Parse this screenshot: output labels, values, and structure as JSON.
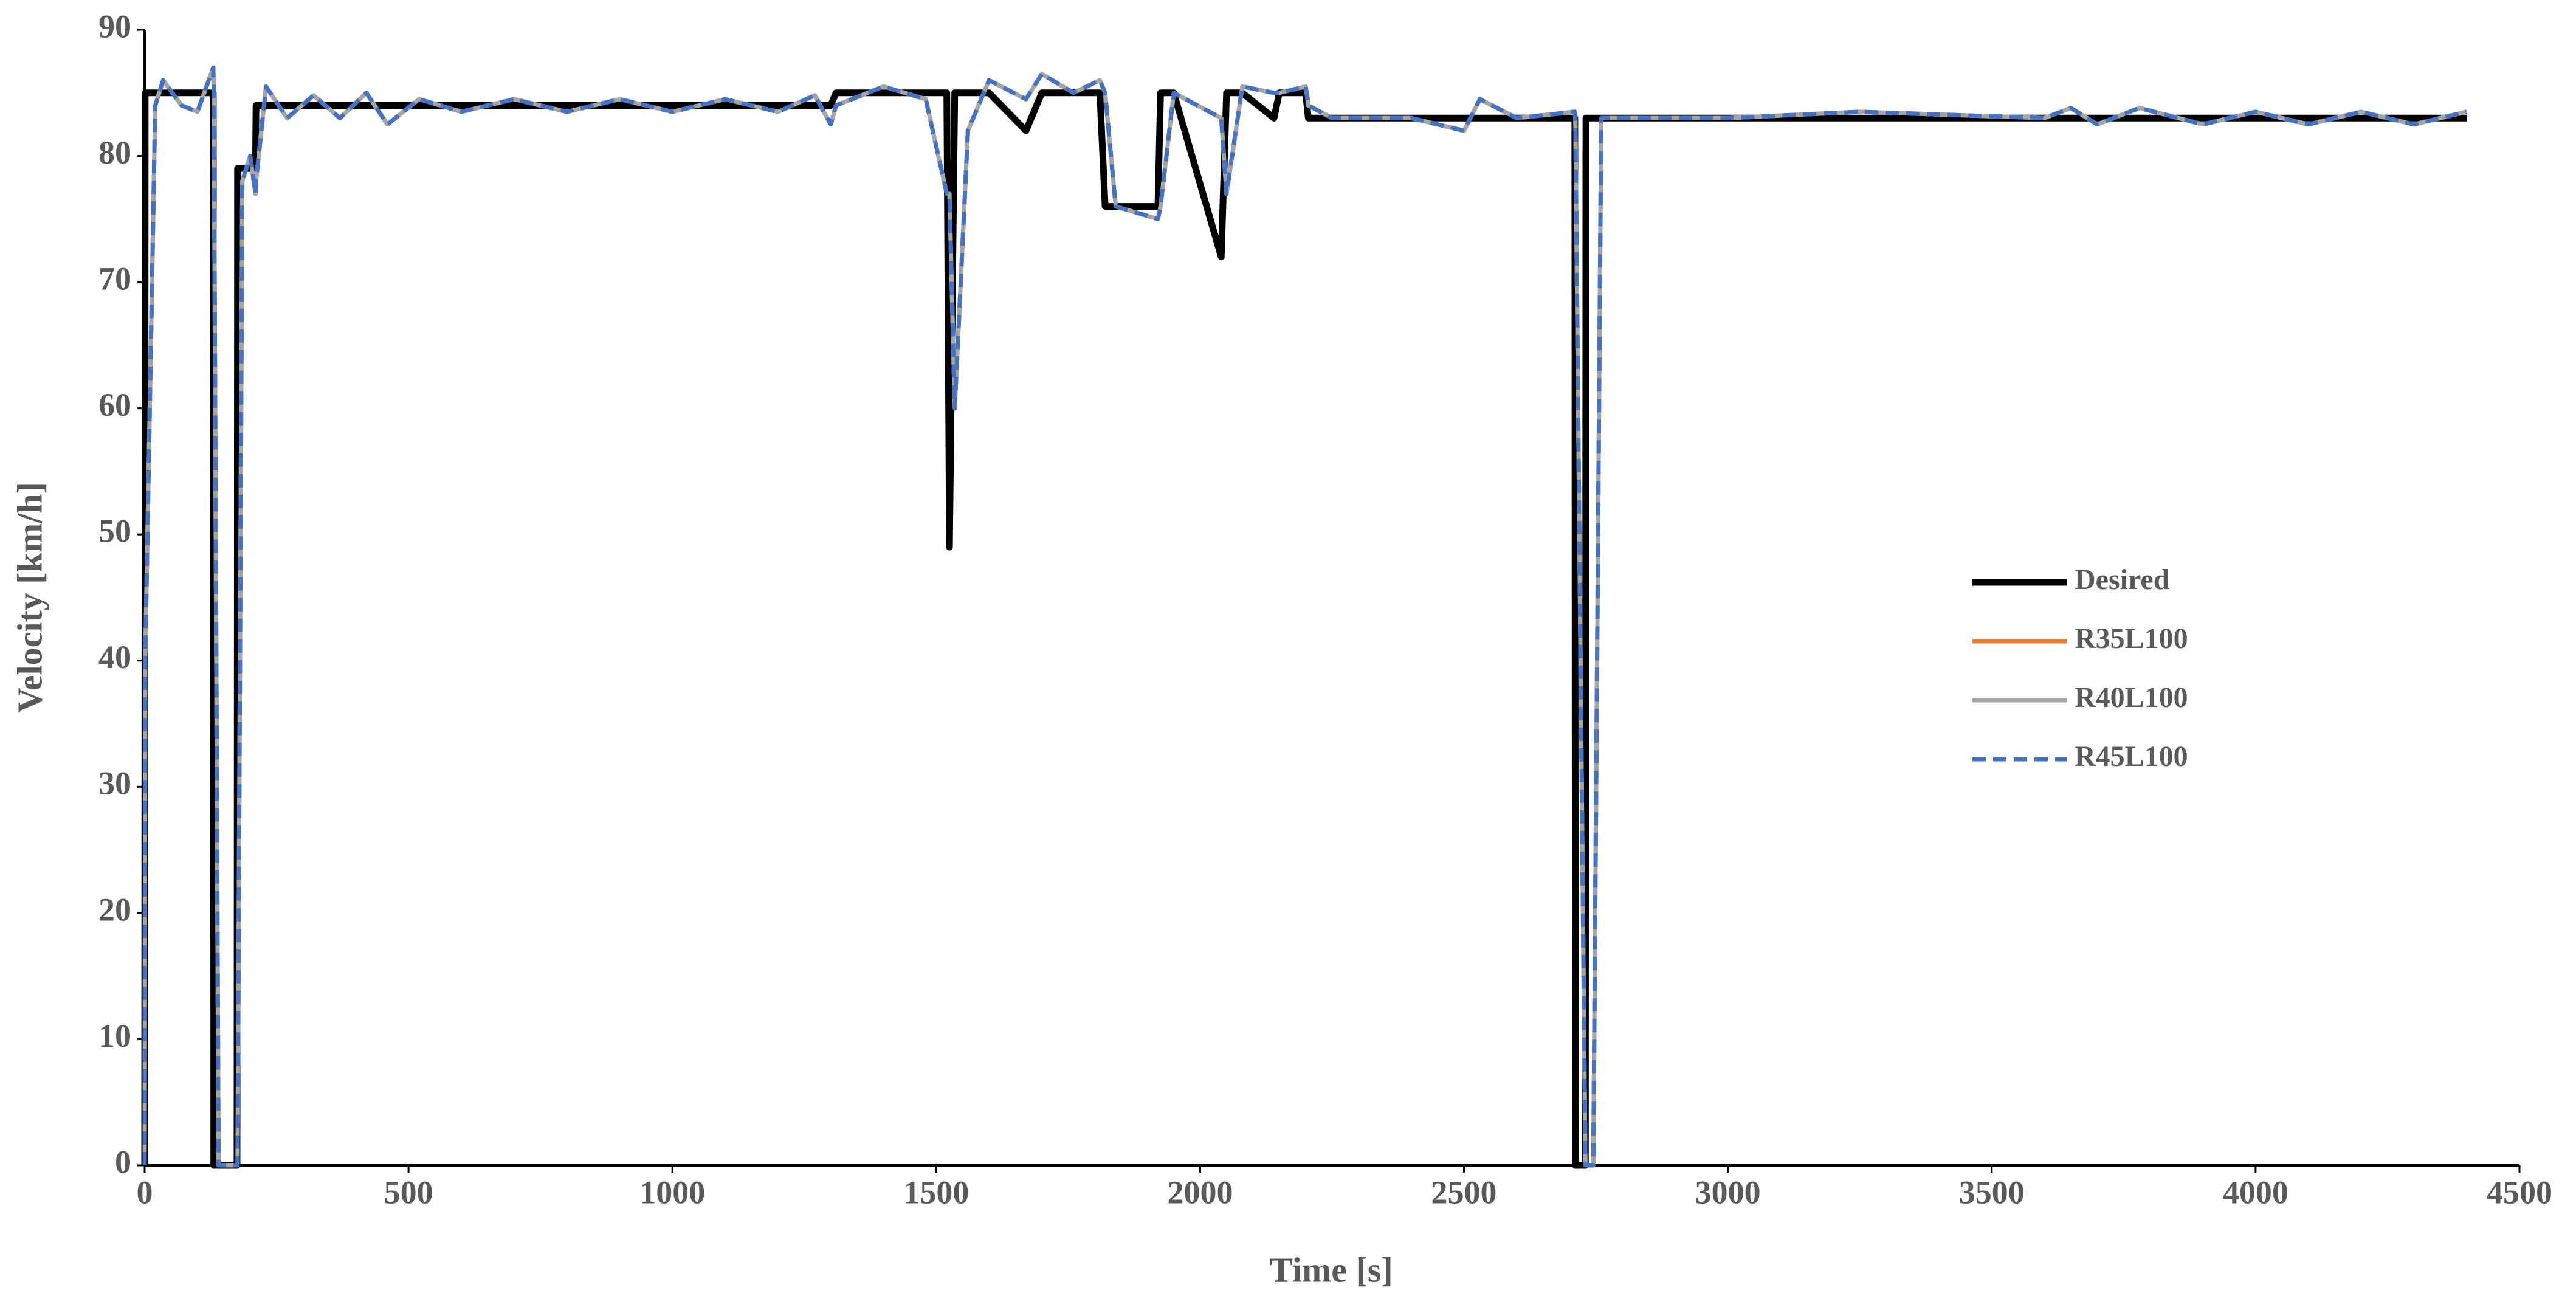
{
  "chart_data": {
    "type": "line",
    "xlabel": "Time [s]",
    "ylabel": "Velocity [km/h]",
    "xlim": [
      0,
      4500
    ],
    "xticks": [
      0,
      500,
      1000,
      1500,
      2000,
      2500,
      3000,
      3500,
      4000,
      4500
    ],
    "ylim": [
      0,
      90
    ],
    "yticks": [
      0,
      10,
      20,
      30,
      40,
      50,
      60,
      70,
      80,
      90
    ],
    "grid": false,
    "legend": "right",
    "x": [
      0,
      1,
      20,
      35,
      70,
      100,
      130,
      131,
      140,
      175,
      176,
      185,
      200,
      210,
      211,
      230,
      270,
      320,
      370,
      420,
      460,
      520,
      600,
      700,
      800,
      900,
      1000,
      1100,
      1200,
      1270,
      1300,
      1310,
      1400,
      1480,
      1520,
      1525,
      1535,
      1560,
      1600,
      1670,
      1700,
      1760,
      1810,
      1820,
      1840,
      1920,
      1925,
      1950,
      2040,
      2050,
      2080,
      2140,
      2150,
      2200,
      2205,
      2250,
      2400,
      2500,
      2530,
      2600,
      2710,
      2711,
      2730,
      2731,
      2745,
      2760,
      3000,
      3250,
      3600,
      3650,
      3700,
      3780,
      3900,
      4000,
      4100,
      4200,
      4300,
      4400
    ],
    "series": [
      {
        "name": "Desired",
        "color": "#000000",
        "dash": false,
        "values": [
          0,
          85,
          85,
          85,
          85,
          85,
          85,
          0,
          0,
          0,
          79,
          79,
          79,
          79,
          84,
          84,
          84,
          84,
          84,
          84,
          84,
          84,
          84,
          84,
          84,
          84,
          84,
          84,
          84,
          84,
          84,
          85,
          85,
          85,
          85,
          49,
          85,
          85,
          85,
          82,
          85,
          85,
          85,
          76,
          76,
          76,
          85,
          85,
          72,
          85,
          85,
          83,
          85,
          85,
          83,
          83,
          83,
          83,
          83,
          83,
          83,
          0,
          0,
          83,
          83,
          83,
          83,
          83,
          83,
          83,
          83,
          83,
          83,
          83,
          83,
          83,
          83,
          83
        ]
      },
      {
        "name": "R35L100",
        "color": "#ed7d31",
        "dash": false,
        "values": [
          0,
          40,
          84,
          86,
          84,
          83.5,
          87,
          85,
          0,
          0,
          0,
          78,
          80,
          77,
          78,
          85.5,
          83,
          84.8,
          83,
          85,
          82.5,
          84.5,
          83.5,
          84.5,
          83.5,
          84.5,
          83.5,
          84.5,
          83.5,
          84.8,
          82.5,
          84,
          85.5,
          84.5,
          77,
          77,
          60,
          82,
          86,
          84.5,
          86.5,
          85,
          86,
          85,
          76,
          75,
          76,
          85,
          83,
          77,
          85.5,
          85,
          85,
          85.5,
          84,
          83,
          83,
          82,
          84.5,
          83,
          83.5,
          83,
          0,
          0,
          0,
          83,
          83,
          83.5,
          83,
          83.8,
          82.5,
          83.8,
          82.5,
          83.5,
          82.5,
          83.5,
          82.5,
          83.5
        ]
      },
      {
        "name": "R40L100",
        "color": "#a5a5a5",
        "dash": false,
        "values": [
          0,
          40,
          84,
          86,
          84,
          83.5,
          87,
          85,
          0,
          0,
          0,
          78,
          80,
          77,
          78,
          85.5,
          83,
          84.8,
          83,
          85,
          82.5,
          84.5,
          83.5,
          84.5,
          83.5,
          84.5,
          83.5,
          84.5,
          83.5,
          84.8,
          82.5,
          84,
          85.5,
          84.5,
          77,
          77,
          60,
          82,
          86,
          84.5,
          86.5,
          85,
          86,
          85,
          76,
          75,
          76,
          85,
          83,
          77,
          85.5,
          85,
          85,
          85.5,
          84,
          83,
          83,
          82,
          84.5,
          83,
          83.5,
          83,
          0,
          0,
          0,
          83,
          83,
          83.5,
          83,
          83.8,
          82.5,
          83.8,
          82.5,
          83.5,
          82.5,
          83.5,
          82.5,
          83.5
        ]
      },
      {
        "name": "R45L100",
        "color": "#4472c4",
        "dash": true,
        "values": [
          0,
          40,
          84,
          86,
          84,
          83.5,
          87,
          85,
          0,
          0,
          0,
          78,
          80,
          77,
          78,
          85.5,
          83,
          84.8,
          83,
          85,
          82.5,
          84.5,
          83.5,
          84.5,
          83.5,
          84.5,
          83.5,
          84.5,
          83.5,
          84.8,
          82.5,
          84,
          85.5,
          84.5,
          77,
          77,
          60,
          82,
          86,
          84.5,
          86.5,
          85,
          86,
          85,
          76,
          75,
          76,
          85,
          83,
          77,
          85.5,
          85,
          85,
          85.5,
          84,
          83,
          83,
          82,
          84.5,
          83,
          83.5,
          83,
          0,
          0,
          0,
          83,
          83,
          83.5,
          83,
          83.8,
          82.5,
          83.8,
          82.5,
          83.5,
          82.5,
          83.5,
          82.5,
          83.5
        ]
      }
    ]
  }
}
